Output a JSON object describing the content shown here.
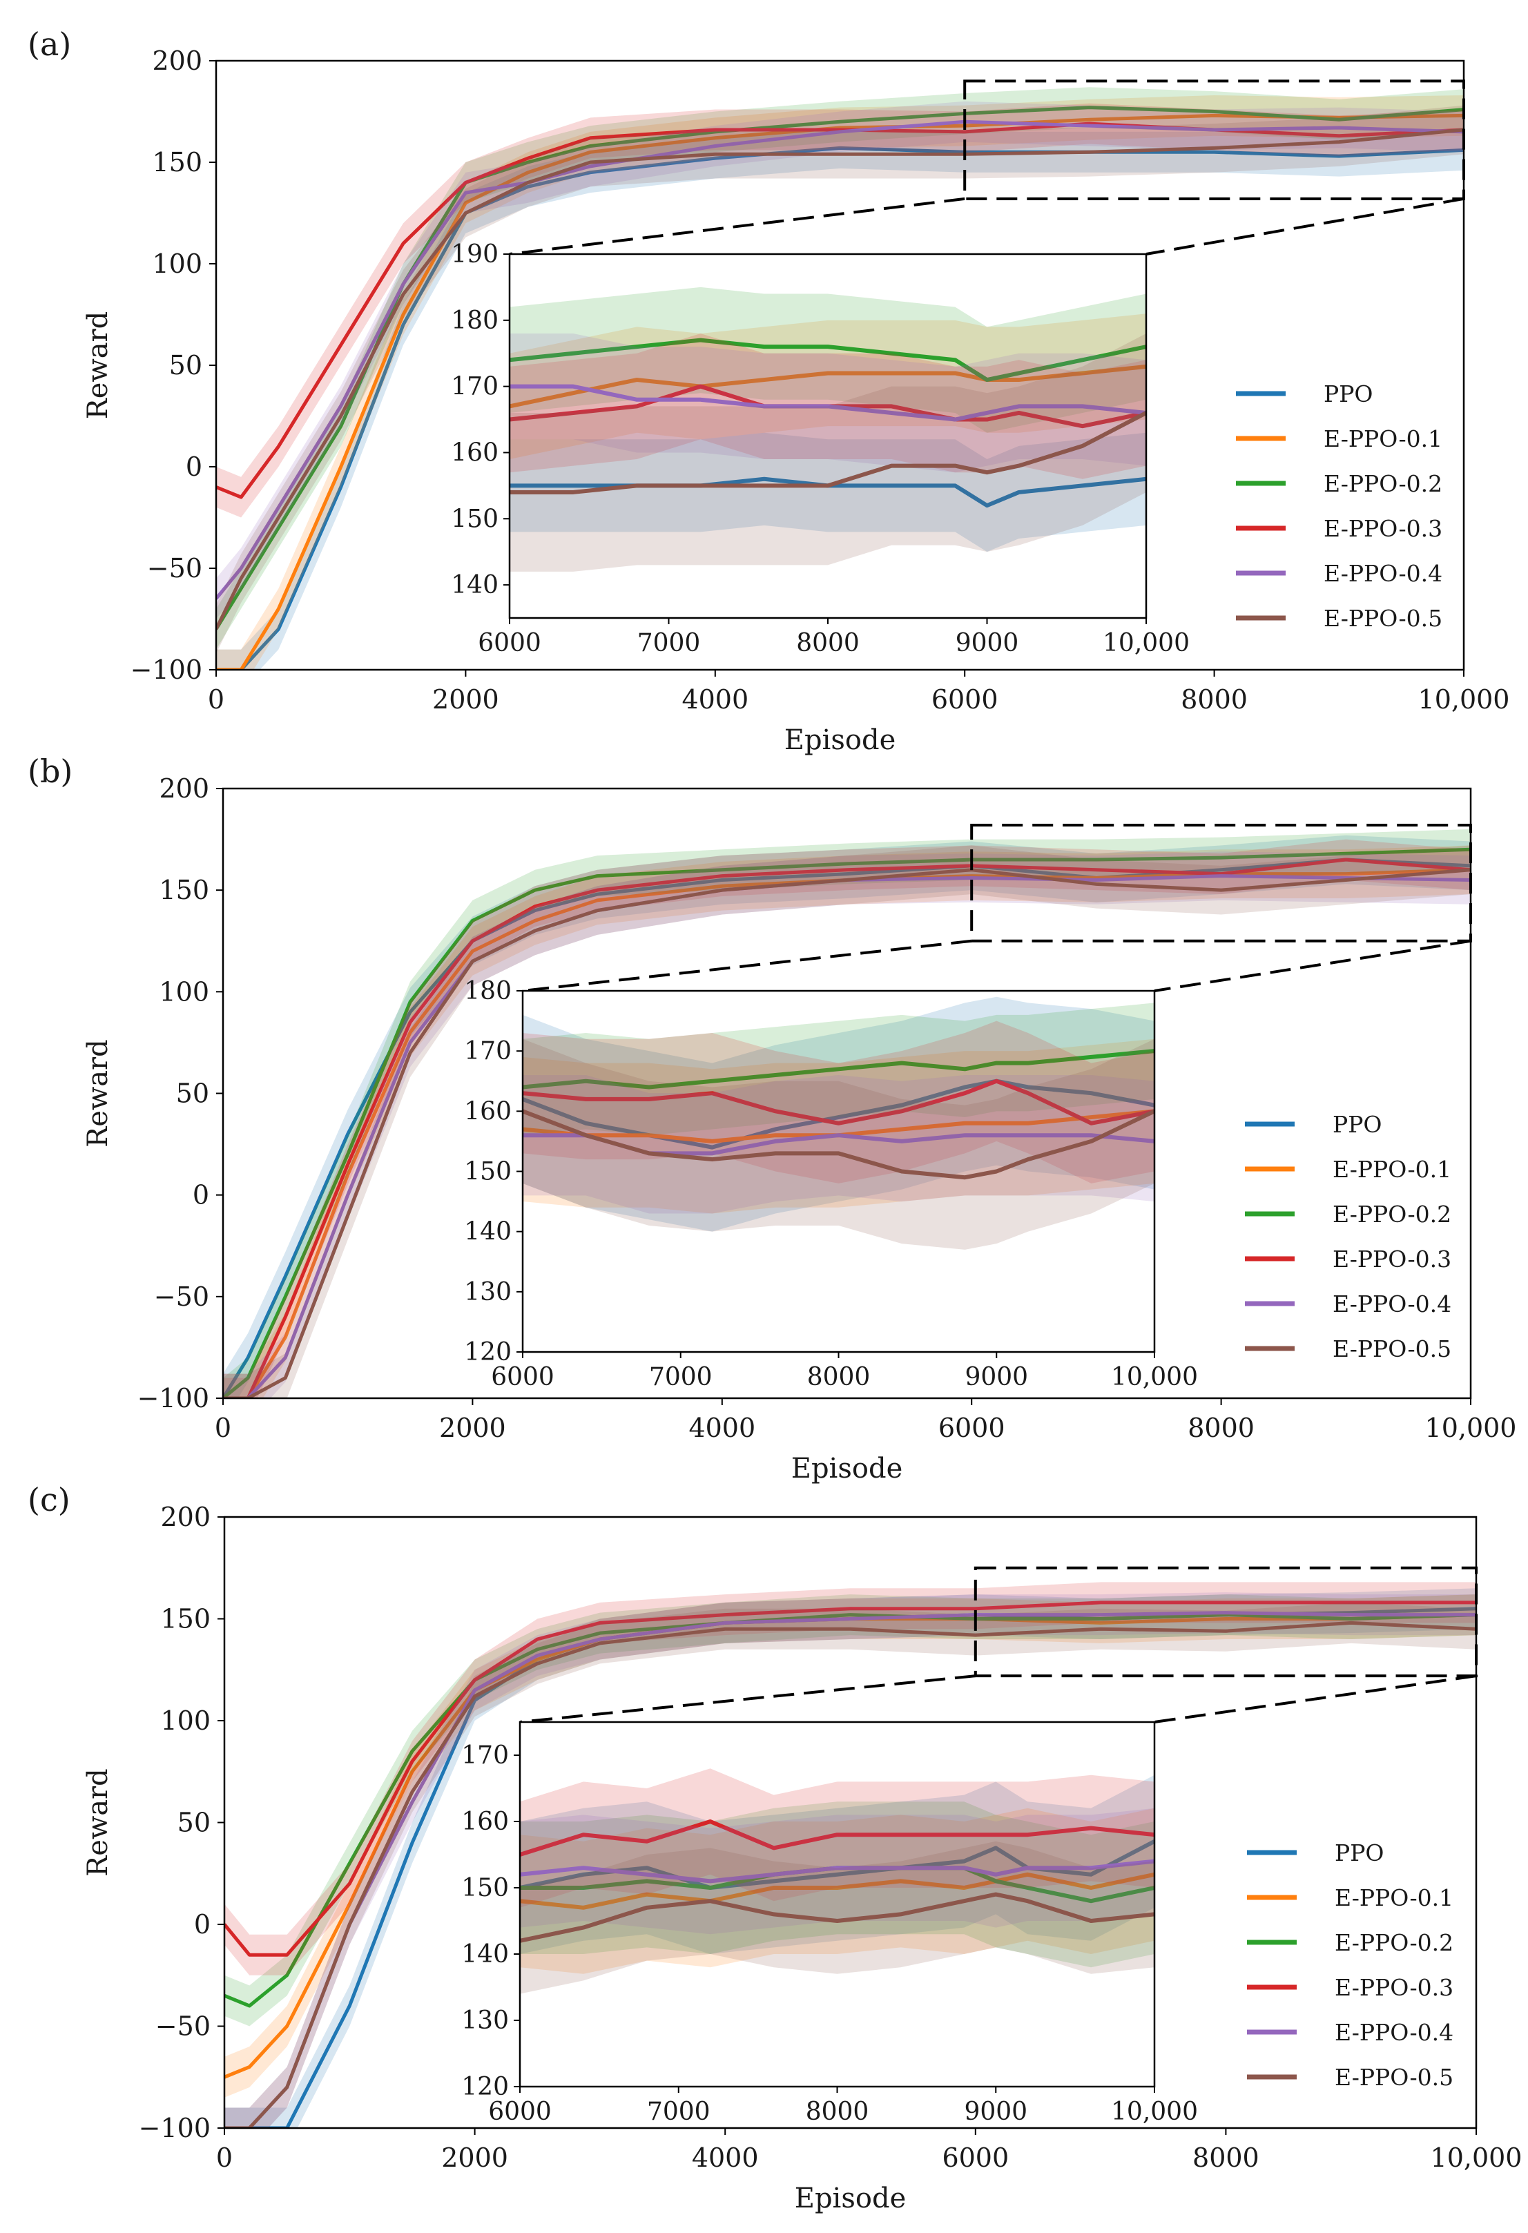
{
  "colors": {
    "PPO": "#1f77b4",
    "E-PPO-0.1": "#ff7f0e",
    "E-PPO-0.2": "#2ca02c",
    "E-PPO-0.3": "#d62728",
    "E-PPO-0.4": "#9467bd",
    "E-PPO-0.5": "#8c564b"
  },
  "chart_data": [
    {
      "panel": "(a)",
      "type": "line",
      "xlabel": "Episode",
      "ylabel": "Reward",
      "xlim": [
        0,
        10000
      ],
      "ylim": [
        -100,
        200
      ],
      "xticks": [
        0,
        2000,
        4000,
        6000,
        8000,
        10000
      ],
      "xtick_labels": [
        "0",
        "2000",
        "4000",
        "6000",
        "8000",
        "10,000"
      ],
      "yticks": [
        -100,
        -50,
        0,
        50,
        100,
        150,
        200
      ],
      "ytick_labels": [
        "−100",
        "−50",
        "0",
        "50",
        "100",
        "150",
        "200"
      ],
      "legend": [
        "PPO",
        "E-PPO-0.1",
        "E-PPO-0.2",
        "E-PPO-0.3",
        "E-PPO-0.4",
        "E-PPO-0.5"
      ],
      "zoom_box": {
        "x": [
          6000,
          10000
        ],
        "y": [
          132,
          190
        ]
      },
      "x": [
        0,
        200,
        500,
        1000,
        1500,
        2000,
        2500,
        3000,
        4000,
        5000,
        6000,
        7000,
        8000,
        9000,
        10000
      ],
      "series": [
        {
          "name": "PPO",
          "values": [
            -100,
            -100,
            -80,
            -10,
            70,
            125,
            138,
            145,
            152,
            157,
            155,
            155,
            155,
            153,
            156
          ],
          "band": 10
        },
        {
          "name": "E-PPO-0.1",
          "values": [
            -100,
            -100,
            -70,
            0,
            75,
            130,
            145,
            155,
            162,
            167,
            168,
            171,
            173,
            172,
            173
          ],
          "band": 10
        },
        {
          "name": "E-PPO-0.2",
          "values": [
            -80,
            -60,
            -30,
            20,
            90,
            140,
            150,
            158,
            165,
            170,
            174,
            177,
            175,
            171,
            176
          ],
          "band": 10
        },
        {
          "name": "E-PPO-0.3",
          "values": [
            -10,
            -15,
            10,
            60,
            110,
            140,
            152,
            162,
            166,
            166,
            165,
            169,
            166,
            163,
            166
          ],
          "band": 10
        },
        {
          "name": "E-PPO-0.4",
          "values": [
            -65,
            -50,
            -20,
            30,
            90,
            135,
            140,
            148,
            158,
            165,
            170,
            168,
            166,
            167,
            165
          ],
          "band": 10
        },
        {
          "name": "E-PPO-0.5",
          "values": [
            -80,
            -55,
            -25,
            25,
            85,
            125,
            140,
            150,
            154,
            154,
            154,
            155,
            157,
            160,
            166
          ],
          "band": 12
        }
      ],
      "inset": {
        "xlim": [
          6000,
          10000
        ],
        "ylim": [
          135,
          190
        ],
        "xticks": [
          6000,
          7000,
          8000,
          9000,
          10000
        ],
        "xtick_labels": [
          "6000",
          "7000",
          "8000",
          "9000",
          "10,000"
        ],
        "yticks": [
          140,
          150,
          160,
          170,
          180,
          190
        ],
        "ytick_labels": [
          "140",
          "150",
          "160",
          "170",
          "180",
          "190"
        ],
        "x": [
          6000,
          6400,
          6800,
          7200,
          7600,
          8000,
          8400,
          8800,
          9000,
          9200,
          9600,
          10000
        ],
        "series": [
          {
            "name": "PPO",
            "values": [
              155,
              155,
              155,
              155,
              156,
              155,
              155,
              155,
              152,
              154,
              155,
              156
            ],
            "band": 7
          },
          {
            "name": "E-PPO-0.1",
            "values": [
              167,
              169,
              171,
              170,
              171,
              172,
              172,
              172,
              171,
              171,
              172,
              173
            ],
            "band": 8
          },
          {
            "name": "E-PPO-0.2",
            "values": [
              174,
              175,
              176,
              177,
              176,
              176,
              175,
              174,
              171,
              172,
              174,
              176
            ],
            "band": 8
          },
          {
            "name": "E-PPO-0.3",
            "values": [
              165,
              166,
              167,
              170,
              167,
              167,
              167,
              165,
              165,
              166,
              164,
              166
            ],
            "band": 8
          },
          {
            "name": "E-PPO-0.4",
            "values": [
              170,
              170,
              168,
              168,
              167,
              167,
              166,
              165,
              166,
              167,
              167,
              166
            ],
            "band": 8
          },
          {
            "name": "E-PPO-0.5",
            "values": [
              154,
              154,
              155,
              155,
              155,
              155,
              158,
              158,
              157,
              158,
              161,
              166
            ],
            "band": 12
          }
        ]
      }
    },
    {
      "panel": "(b)",
      "type": "line",
      "xlabel": "Episode",
      "ylabel": "Reward",
      "xlim": [
        0,
        10000
      ],
      "ylim": [
        -100,
        200
      ],
      "xticks": [
        0,
        2000,
        4000,
        6000,
        8000,
        10000
      ],
      "xtick_labels": [
        "0",
        "2000",
        "4000",
        "6000",
        "8000",
        "10,000"
      ],
      "yticks": [
        -100,
        -50,
        0,
        50,
        100,
        150,
        200
      ],
      "ytick_labels": [
        "−100",
        "−50",
        "0",
        "50",
        "100",
        "150",
        "200"
      ],
      "legend": [
        "PPO",
        "E-PPO-0.1",
        "E-PPO-0.2",
        "E-PPO-0.3",
        "E-PPO-0.4",
        "E-PPO-0.5"
      ],
      "zoom_box": {
        "x": [
          6000,
          10000
        ],
        "y": [
          125,
          182
        ]
      },
      "x": [
        0,
        200,
        500,
        1000,
        1500,
        2000,
        2500,
        3000,
        4000,
        5000,
        6000,
        7000,
        8000,
        9000,
        10000
      ],
      "series": [
        {
          "name": "PPO",
          "values": [
            -100,
            -80,
            -40,
            30,
            90,
            125,
            140,
            148,
            155,
            158,
            162,
            156,
            160,
            165,
            162
          ],
          "band": 12
        },
        {
          "name": "E-PPO-0.1",
          "values": [
            -100,
            -100,
            -70,
            10,
            80,
            120,
            135,
            145,
            152,
            155,
            157,
            156,
            158,
            158,
            160
          ],
          "band": 12
        },
        {
          "name": "E-PPO-0.2",
          "values": [
            -100,
            -90,
            -50,
            20,
            95,
            135,
            150,
            157,
            160,
            163,
            165,
            165,
            166,
            168,
            170
          ],
          "band": 10
        },
        {
          "name": "E-PPO-0.3",
          "values": [
            -100,
            -100,
            -60,
            15,
            85,
            125,
            142,
            150,
            157,
            160,
            162,
            160,
            158,
            165,
            160
          ],
          "band": 10
        },
        {
          "name": "E-PPO-0.4",
          "values": [
            -100,
            -100,
            -80,
            0,
            75,
            115,
            130,
            140,
            150,
            155,
            156,
            155,
            157,
            156,
            155
          ],
          "band": 12
        },
        {
          "name": "E-PPO-0.5",
          "values": [
            -100,
            -100,
            -90,
            -10,
            70,
            115,
            130,
            140,
            150,
            155,
            160,
            153,
            150,
            155,
            160
          ],
          "band": 12
        }
      ],
      "inset": {
        "xlim": [
          6000,
          10000
        ],
        "ylim": [
          120,
          180
        ],
        "xticks": [
          6000,
          7000,
          8000,
          9000,
          10000
        ],
        "xtick_labels": [
          "6000",
          "7000",
          "8000",
          "9000",
          "10,000"
        ],
        "yticks": [
          120,
          130,
          140,
          150,
          160,
          170,
          180
        ],
        "ytick_labels": [
          "120",
          "130",
          "140",
          "150",
          "160",
          "170",
          "180"
        ],
        "x": [
          6000,
          6400,
          6800,
          7200,
          7600,
          8000,
          8400,
          8800,
          9000,
          9200,
          9600,
          10000
        ],
        "series": [
          {
            "name": "PPO",
            "values": [
              162,
              158,
              156,
              154,
              157,
              159,
              161,
              164,
              165,
              164,
              163,
              161
            ],
            "band": 14
          },
          {
            "name": "E-PPO-0.1",
            "values": [
              157,
              156,
              156,
              155,
              156,
              156,
              157,
              158,
              158,
              158,
              159,
              160
            ],
            "band": 12
          },
          {
            "name": "E-PPO-0.2",
            "values": [
              164,
              165,
              164,
              165,
              166,
              167,
              168,
              167,
              168,
              168,
              169,
              170
            ],
            "band": 8
          },
          {
            "name": "E-PPO-0.3",
            "values": [
              163,
              162,
              162,
              163,
              160,
              158,
              160,
              163,
              165,
              163,
              158,
              160
            ],
            "band": 10
          },
          {
            "name": "E-PPO-0.4",
            "values": [
              156,
              156,
              153,
              153,
              155,
              156,
              155,
              156,
              156,
              156,
              156,
              155
            ],
            "band": 10
          },
          {
            "name": "E-PPO-0.5",
            "values": [
              160,
              156,
              153,
              152,
              153,
              153,
              150,
              149,
              150,
              152,
              155,
              160
            ],
            "band": 12
          }
        ]
      }
    },
    {
      "panel": "(c)",
      "type": "line",
      "xlabel": "Episode",
      "ylabel": "Reward",
      "xlim": [
        0,
        10000
      ],
      "ylim": [
        -100,
        200
      ],
      "xticks": [
        0,
        2000,
        4000,
        6000,
        8000,
        10000
      ],
      "xtick_labels": [
        "0",
        "2000",
        "4000",
        "6000",
        "8000",
        "10,000"
      ],
      "yticks": [
        -100,
        -50,
        0,
        50,
        100,
        150,
        200
      ],
      "ytick_labels": [
        "−100",
        "−50",
        "0",
        "50",
        "100",
        "150",
        "200"
      ],
      "legend": [
        "PPO",
        "E-PPO-0.1",
        "E-PPO-0.2",
        "E-PPO-0.3",
        "E-PPO-0.4",
        "E-PPO-0.5"
      ],
      "zoom_box": {
        "x": [
          6000,
          10000
        ],
        "y": [
          122,
          175
        ]
      },
      "x": [
        0,
        200,
        500,
        1000,
        1500,
        2000,
        2500,
        3000,
        4000,
        5000,
        6000,
        7000,
        8000,
        9000,
        10000
      ],
      "series": [
        {
          "name": "PPO",
          "values": [
            -100,
            -100,
            -100,
            -40,
            40,
            110,
            130,
            140,
            148,
            150,
            152,
            150,
            152,
            153,
            155
          ],
          "band": 10
        },
        {
          "name": "E-PPO-0.1",
          "values": [
            -75,
            -70,
            -50,
            10,
            75,
            115,
            130,
            140,
            148,
            150,
            150,
            148,
            150,
            150,
            152
          ],
          "band": 10
        },
        {
          "name": "E-PPO-0.2",
          "values": [
            -35,
            -40,
            -25,
            30,
            85,
            120,
            135,
            143,
            148,
            152,
            150,
            150,
            152,
            150,
            152
          ],
          "band": 10
        },
        {
          "name": "E-PPO-0.3",
          "values": [
            0,
            -15,
            -15,
            20,
            80,
            120,
            140,
            148,
            152,
            155,
            155,
            158,
            158,
            158,
            158
          ],
          "band": 10
        },
        {
          "name": "E-PPO-0.4",
          "values": [
            -100,
            -100,
            -80,
            0,
            60,
            115,
            132,
            140,
            148,
            150,
            152,
            152,
            153,
            152,
            152
          ],
          "band": 10
        },
        {
          "name": "E-PPO-0.5",
          "values": [
            -100,
            -100,
            -80,
            0,
            65,
            112,
            128,
            138,
            145,
            145,
            142,
            145,
            144,
            148,
            145
          ],
          "band": 10
        }
      ],
      "inset": {
        "xlim": [
          6000,
          10000
        ],
        "ylim": [
          120,
          175
        ],
        "xticks": [
          6000,
          7000,
          8000,
          9000,
          10000
        ],
        "xtick_labels": [
          "6000",
          "7000",
          "8000",
          "9000",
          "10,000"
        ],
        "yticks": [
          120,
          130,
          140,
          150,
          160,
          170
        ],
        "ytick_labels": [
          "120",
          "130",
          "140",
          "150",
          "160",
          "170"
        ],
        "x": [
          6000,
          6400,
          6800,
          7200,
          7600,
          8000,
          8400,
          8800,
          9000,
          9200,
          9600,
          10000
        ],
        "series": [
          {
            "name": "PPO",
            "values": [
              150,
              152,
              153,
              150,
              151,
              152,
              153,
              154,
              156,
              153,
              152,
              157
            ],
            "band": 10
          },
          {
            "name": "E-PPO-0.1",
            "values": [
              148,
              147,
              149,
              148,
              150,
              150,
              151,
              150,
              151,
              152,
              150,
              152
            ],
            "band": 10
          },
          {
            "name": "E-PPO-0.2",
            "values": [
              150,
              150,
              151,
              150,
              152,
              153,
              153,
              153,
              151,
              150,
              148,
              150
            ],
            "band": 10
          },
          {
            "name": "E-PPO-0.3",
            "values": [
              155,
              158,
              157,
              160,
              156,
              158,
              158,
              158,
              158,
              158,
              159,
              158
            ],
            "band": 8
          },
          {
            "name": "E-PPO-0.4",
            "values": [
              152,
              153,
              152,
              151,
              152,
              153,
              153,
              153,
              152,
              153,
              153,
              154
            ],
            "band": 8
          },
          {
            "name": "E-PPO-0.5",
            "values": [
              142,
              144,
              147,
              148,
              146,
              145,
              146,
              148,
              149,
              148,
              145,
              146
            ],
            "band": 8
          }
        ]
      }
    }
  ]
}
